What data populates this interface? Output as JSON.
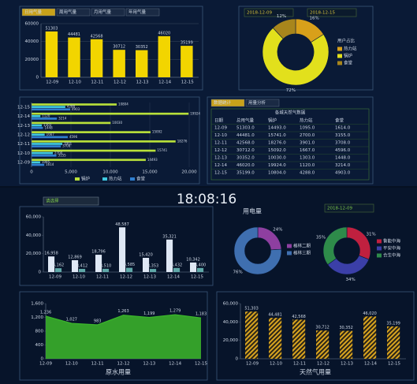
{
  "tabs": [
    "日用气量",
    "周用气量",
    "月用气量",
    "年用气量"
  ],
  "dates": [
    "2018-12-09",
    "2018-12-15"
  ],
  "table": {
    "tabs": [
      "数据统计",
      "用量分析"
    ],
    "title": "各城天然气数据",
    "columns": [
      "日期",
      "总用气量",
      "锅炉",
      "热力站",
      "食堂"
    ],
    "rows": [
      [
        "12-09",
        "51303.0",
        "14493.0",
        "1095.0",
        "1614.0"
      ],
      [
        "12-10",
        "44481.0",
        "15741.0",
        "2700.0",
        "3155.0"
      ],
      [
        "12-11",
        "42568.0",
        "18276.0",
        "3901.0",
        "3708.0"
      ],
      [
        "12-12",
        "30712.0",
        "15092.0",
        "1667.0",
        "4596.0"
      ],
      [
        "12-13",
        "30352.0",
        "10030.0",
        "1303.0",
        "1448.0"
      ],
      [
        "12-14",
        "46020.0",
        "19924.0",
        "1120.0",
        "3214.0"
      ],
      [
        "12-15",
        "35199.0",
        "10804.0",
        "4288.0",
        "4903.0"
      ]
    ]
  },
  "clock": "18:08:16",
  "select": "请选择",
  "date": "2018-12-09",
  "chart_data": [
    {
      "type": "bar",
      "categories": [
        "12-09",
        "12-10",
        "12-11",
        "12-12",
        "12-13",
        "12-14",
        "12-15"
      ],
      "values": [
        51303,
        44481,
        42568,
        30712,
        30352,
        46020,
        35199
      ],
      "color": "#f2d500",
      "ylim": [
        0,
        60000
      ],
      "yticks": [
        0,
        20000,
        40000,
        60000
      ],
      "grid": true
    },
    {
      "type": "pie",
      "donut": true,
      "legend_title": "用户占比",
      "categories": [
        "热力站",
        "锅炉",
        "食堂"
      ],
      "values": [
        16,
        72,
        12
      ],
      "value_labels": [
        "16%",
        "72%",
        "12%"
      ],
      "colors": [
        "#d8a01a",
        "#e2e01c",
        "#a8861c"
      ]
    },
    {
      "type": "hbar",
      "categories": [
        "12-09",
        "12-10",
        "12-11",
        "12-12",
        "12-13",
        "12-14",
        "12-15"
      ],
      "series": [
        {
          "name": "锅炉",
          "color": "#b8e03a",
          "values": [
            14493,
            15741,
            18276,
            15092,
            10030,
            19924,
            10804
          ]
        },
        {
          "name": "热力站",
          "color": "#3fc8e0",
          "values": [
            1095,
            2700,
            3901,
            1667,
            1303,
            1120,
            4288
          ]
        },
        {
          "name": "食堂",
          "color": "#2f7fd0",
          "values": [
            1614,
            3155,
            3708,
            4596,
            1448,
            3214,
            4903
          ]
        }
      ],
      "xlim": [
        0,
        20000
      ],
      "xticks": [
        0,
        {
          "value": 5000,
          "label": "5,000"
        },
        {
          "value": 10000,
          "label": "10,000"
        },
        {
          "value": 15000,
          "label": "15,000"
        },
        {
          "value": 20000,
          "label": "20,000"
        }
      ],
      "grid": true
    },
    {
      "type": "bar",
      "categories": [
        "12-09",
        "12-10",
        "12-11",
        "12-12",
        "12-13",
        "12-14",
        "12-15"
      ],
      "series": [
        {
          "color": "#dfe8f5",
          "values": [
            16958,
            12869,
            18796,
            48587,
            15420,
            35321,
            10342
          ],
          "value_labels": [
            "16,958",
            "12,869",
            "18,796",
            "48,587",
            "15,420",
            "35,321",
            "10,342"
          ]
        },
        {
          "color": "#5fa8a8",
          "values": [
            4162,
            3412,
            3510,
            4585,
            3353,
            4432,
            4400
          ],
          "value_labels": [
            "4,162",
            "3,412",
            "3,510",
            "4,585",
            "3,353",
            "4,432",
            "4,400"
          ]
        }
      ],
      "ylim": [
        0,
        60000
      ],
      "yticks": [
        0,
        {
          "value": 20000,
          "label": "20,000"
        },
        {
          "value": 40000,
          "label": "40,000"
        },
        {
          "value": 60000,
          "label": "60,000"
        }
      ],
      "grid": false
    },
    {
      "type": "pie",
      "donut": true,
      "title": "用电量",
      "categories": [
        "格林二期",
        "格林三期"
      ],
      "values": [
        24,
        76
      ],
      "value_labels": [
        "24%",
        "76%"
      ],
      "colors": [
        "#8e3fa0",
        "#3f6fb0"
      ]
    },
    {
      "type": "pie",
      "donut": true,
      "categories": [
        "鲁能中海",
        "平安中海",
        "合生中海"
      ],
      "values": [
        31,
        34,
        35
      ],
      "value_labels": [
        "31%",
        "34%",
        "35%"
      ],
      "colors": [
        "#c0203f",
        "#3b3fa8",
        "#2e8b4a"
      ]
    },
    {
      "type": "area",
      "title": "原水用量",
      "categories": [
        "12-09",
        "12-10",
        "12-11",
        "12-12",
        "12-13",
        "12-14",
        "12-15"
      ],
      "values": [
        1236,
        1027,
        983,
        1263,
        1199,
        1279,
        1183
      ],
      "value_labels": [
        "1,236",
        "1,027",
        "983",
        "1,263",
        "1,199",
        "1,279",
        "1,183"
      ],
      "color": "#3cb82a",
      "ylim": [
        0,
        1600
      ],
      "yticks": [
        0,
        400,
        800,
        {
          "value": 1200,
          "label": "1,200"
        },
        {
          "value": 1600,
          "label": "1,600"
        }
      ],
      "grid": false
    },
    {
      "type": "bar",
      "title": "天然气用量",
      "bar_style": "hatched",
      "categories": [
        "12-09",
        "12-10",
        "12-11",
        "12-12",
        "12-13",
        "12-14",
        "12-15"
      ],
      "values": [
        51303,
        44481,
        42568,
        30712,
        30352,
        46020,
        35199
      ],
      "value_labels": [
        "51,303",
        "44,481",
        "42,568",
        "30,712",
        "30,352",
        "46,020",
        "35,199"
      ],
      "color": "#d9a520",
      "ylim": [
        0,
        60000
      ],
      "yticks": [
        0,
        {
          "value": 20000,
          "label": "20,000"
        },
        {
          "value": 40000,
          "label": "40,000"
        },
        {
          "value": 60000,
          "label": "60,000"
        }
      ],
      "grid": false
    }
  ]
}
